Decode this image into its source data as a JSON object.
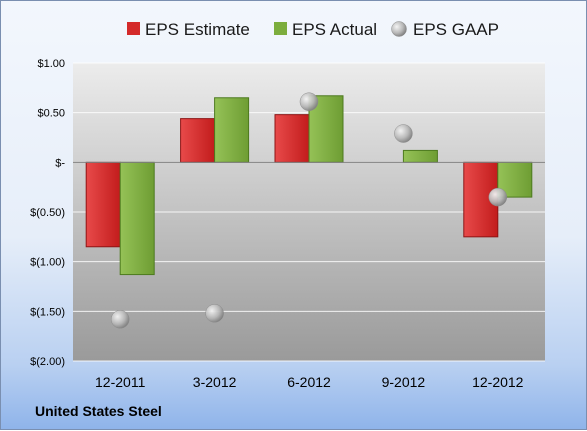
{
  "company": "United States Steel",
  "colors": {
    "estimate": "#d42a2a",
    "estimate_dark": "#8e1414",
    "actual": "#7cad3d",
    "actual_dark": "#4d7a1f",
    "gaap": "#b8b8b8",
    "plot_top": "#ececec",
    "plot_bottom": "#9a9a9a",
    "gridline": "#ffffff"
  },
  "chart_data": {
    "type": "bar",
    "categories": [
      "12-2011",
      "3-2012",
      "6-2012",
      "9-2012",
      "12-2012"
    ],
    "series": [
      {
        "name": "EPS Estimate",
        "kind": "bar",
        "values": [
          -0.85,
          0.44,
          0.48,
          0.0,
          -0.75
        ]
      },
      {
        "name": "EPS Actual",
        "kind": "bar",
        "values": [
          -1.13,
          0.65,
          0.67,
          0.12,
          -0.35
        ]
      },
      {
        "name": "EPS GAAP",
        "kind": "marker",
        "values": [
          -1.58,
          -1.52,
          0.61,
          0.29,
          -0.35
        ]
      }
    ],
    "ylim": [
      -2.0,
      1.0
    ],
    "yticks": [
      1.0,
      0.5,
      0.0,
      -0.5,
      -1.0,
      -1.5,
      -2.0
    ],
    "ytick_labels": [
      "$1.00",
      "$0.50",
      "$-",
      "$(0.50)",
      "$(1.00)",
      "$(1.50)",
      "$(2.00)"
    ],
    "grid": true,
    "legend_position": "top"
  }
}
